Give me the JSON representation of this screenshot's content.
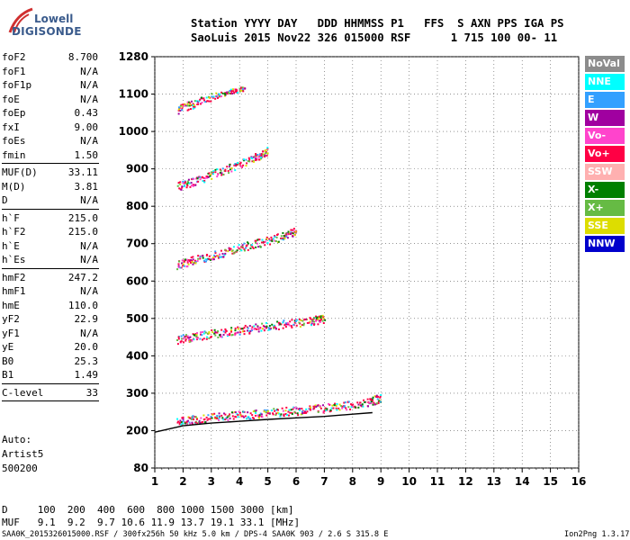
{
  "logo": {
    "line1": "Lowell",
    "line2": "DIGISONDE"
  },
  "header": {
    "line1": "Station YYYY DAY   DDD HHMMSS P1   FFS  S AXN PPS IGA PS",
    "line2": "SaoLuis 2015 Nov22 326 015000 RSF      1 715 100 00- 11"
  },
  "params": {
    "group1": [
      {
        "k": "foF2",
        "v": "8.700"
      },
      {
        "k": "foF1",
        "v": "N/A"
      },
      {
        "k": "foF1p",
        "v": "N/A"
      },
      {
        "k": "foE",
        "v": "N/A"
      },
      {
        "k": "foEp",
        "v": "0.43"
      },
      {
        "k": "fxI",
        "v": "9.00"
      },
      {
        "k": "foEs",
        "v": "N/A"
      },
      {
        "k": "fmin",
        "v": "1.50"
      }
    ],
    "group2": [
      {
        "k": "MUF(D)",
        "v": "33.11"
      },
      {
        "k": "M(D)",
        "v": "3.81"
      },
      {
        "k": "D",
        "v": "N/A"
      }
    ],
    "group3": [
      {
        "k": "h`F",
        "v": "215.0"
      },
      {
        "k": "h`F2",
        "v": "215.0"
      },
      {
        "k": "h`E",
        "v": "N/A"
      },
      {
        "k": "h`Es",
        "v": "N/A"
      }
    ],
    "group4": [
      {
        "k": "hmF2",
        "v": "247.2"
      },
      {
        "k": "hmF1",
        "v": "N/A"
      },
      {
        "k": "hmE",
        "v": "110.0"
      },
      {
        "k": "yF2",
        "v": "22.9"
      },
      {
        "k": "yF1",
        "v": "N/A"
      },
      {
        "k": "yE",
        "v": "20.0"
      },
      {
        "k": "B0",
        "v": "25.3"
      },
      {
        "k": "B1",
        "v": "1.49"
      }
    ],
    "group5": [
      {
        "k": "C-level",
        "v": "33"
      }
    ]
  },
  "auto": {
    "line1": "Auto:",
    "line2": "Artist5",
    "line3": "500200"
  },
  "footer": {
    "d_row": "D     100  200  400  600  800 1000 1500 3000 [km]",
    "muf_row": "MUF   9.1  9.2  9.7 10.6 11.9 13.7 19.1 33.1 [MHz]",
    "file_line": "SAA0K_2015326015000.RSF / 300fx256h 50 kHz 5.0 km / DPS-4 SAA0K 903 / 2.6 S 315.8 E",
    "version": "Ion2Png 1.3.17"
  },
  "legend": [
    {
      "label": "NoVal",
      "bg": "#8c8c8c",
      "fg": "#ffffff"
    },
    {
      "label": "NNE",
      "bg": "#00ffff",
      "fg": "#ffffff"
    },
    {
      "label": "E",
      "bg": "#33a0ff",
      "fg": "#ffffff"
    },
    {
      "label": "W",
      "bg": "#a000a0",
      "fg": "#ffffff"
    },
    {
      "label": "Vo-",
      "bg": "#ff44cc",
      "fg": "#ffffff"
    },
    {
      "label": "Vo+",
      "bg": "#ff0044",
      "fg": "#ffffff"
    },
    {
      "label": "SSW",
      "bg": "#ffb0b0",
      "fg": "#ffffff"
    },
    {
      "label": "X-",
      "bg": "#008000",
      "fg": "#ffffff"
    },
    {
      "label": "X+",
      "bg": "#66bb44",
      "fg": "#ffffff"
    },
    {
      "label": "SSE",
      "bg": "#dddd00",
      "fg": "#ffffff"
    },
    {
      "label": "NNW",
      "bg": "#0000cc",
      "fg": "#ffffff"
    }
  ],
  "chart_data": {
    "type": "scatter",
    "xlim": [
      1,
      16
    ],
    "ylim": [
      80,
      1280
    ],
    "x_ticks": [
      1,
      2,
      3,
      4,
      5,
      6,
      7,
      8,
      9,
      10,
      11,
      12,
      13,
      14,
      15,
      16
    ],
    "y_ticks": [
      80,
      200,
      300,
      400,
      500,
      600,
      700,
      800,
      900,
      1000,
      1100,
      1280
    ],
    "grid": true,
    "legend_position": "right",
    "traces": [
      {
        "name": "Vo+",
        "color": "#ff0044",
        "points": [
          [
            1.8,
            225
          ],
          [
            2.5,
            232
          ],
          [
            3.5,
            240
          ],
          [
            4.5,
            246
          ],
          [
            5.5,
            252
          ],
          [
            6.5,
            258
          ],
          [
            7.5,
            266
          ],
          [
            8.5,
            276
          ],
          [
            9,
            290
          ]
        ]
      },
      {
        "name": "Vo+",
        "color": "#ff0044",
        "points": [
          [
            1.8,
            445
          ],
          [
            2.5,
            455
          ],
          [
            3.5,
            465
          ],
          [
            4.5,
            475
          ],
          [
            5.5,
            485
          ],
          [
            6.5,
            495
          ],
          [
            7,
            500
          ]
        ]
      },
      {
        "name": "Vo+",
        "color": "#ff0044",
        "points": [
          [
            1.8,
            645
          ],
          [
            2.5,
            660
          ],
          [
            3.5,
            680
          ],
          [
            4.5,
            700
          ],
          [
            5.5,
            720
          ],
          [
            6,
            735
          ]
        ]
      },
      {
        "name": "Vo+",
        "color": "#ff0044",
        "points": [
          [
            1.8,
            855
          ],
          [
            2.5,
            870
          ],
          [
            3.5,
            900
          ],
          [
            4.5,
            930
          ],
          [
            5,
            950
          ]
        ]
      },
      {
        "name": "Vo+",
        "color": "#ff0044",
        "points": [
          [
            1.8,
            1060
          ],
          [
            2.5,
            1080
          ],
          [
            3.5,
            1110
          ],
          [
            4.2,
            1130
          ]
        ]
      }
    ],
    "leading_edge": [
      [
        1.0,
        195
      ],
      [
        2.0,
        213
      ],
      [
        3.0,
        220
      ],
      [
        4.0,
        225
      ],
      [
        5.0,
        230
      ],
      [
        6.0,
        234
      ],
      [
        7.0,
        238
      ],
      [
        8.0,
        244
      ],
      [
        8.7,
        248
      ]
    ]
  }
}
